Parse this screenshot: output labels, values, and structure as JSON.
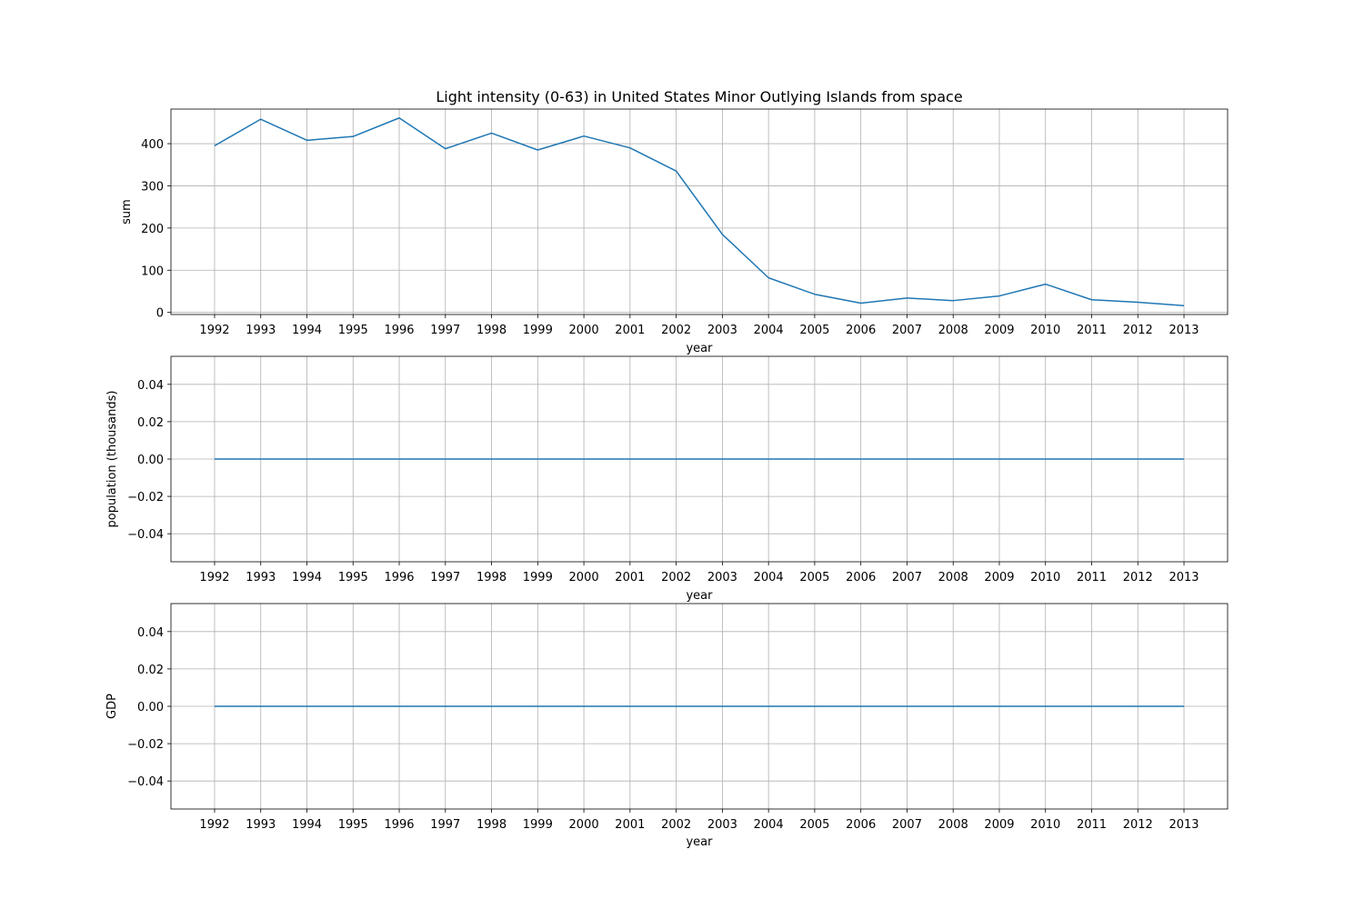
{
  "chart_data": [
    {
      "type": "line",
      "title": "Light intensity (0-63) in United States Minor Outlying Islands from space",
      "xlabel": "year",
      "ylabel": "sum",
      "grid": true,
      "line_color": "#1f77b4",
      "x": [
        1992,
        1993,
        1994,
        1995,
        1996,
        1997,
        1998,
        1999,
        2000,
        2001,
        2002,
        2003,
        2004,
        2005,
        2006,
        2007,
        2008,
        2009,
        2010,
        2011,
        2012,
        2013
      ],
      "values": [
        395,
        458,
        408,
        417,
        461,
        388,
        425,
        385,
        418,
        390,
        335,
        185,
        82,
        43,
        22,
        34,
        28,
        39,
        67,
        30,
        24,
        16
      ],
      "ylim": [
        -5,
        482
      ],
      "yticks": [
        0,
        100,
        200,
        300,
        400
      ],
      "ytick_labels": [
        "0",
        "100",
        "200",
        "300",
        "400"
      ]
    },
    {
      "type": "line",
      "title": "",
      "xlabel": "year",
      "ylabel": "population (thousands)",
      "grid": true,
      "line_color": "#1f77b4",
      "x": [
        1992,
        1993,
        1994,
        1995,
        1996,
        1997,
        1998,
        1999,
        2000,
        2001,
        2002,
        2003,
        2004,
        2005,
        2006,
        2007,
        2008,
        2009,
        2010,
        2011,
        2012,
        2013
      ],
      "values": [
        0,
        0,
        0,
        0,
        0,
        0,
        0,
        0,
        0,
        0,
        0,
        0,
        0,
        0,
        0,
        0,
        0,
        0,
        0,
        0,
        0,
        0
      ],
      "ylim": [
        -0.055,
        0.055
      ],
      "yticks": [
        -0.04,
        -0.02,
        0.0,
        0.02,
        0.04
      ],
      "ytick_labels": [
        "−0.04",
        "−0.02",
        "0.00",
        "0.02",
        "0.04"
      ]
    },
    {
      "type": "line",
      "title": "",
      "xlabel": "year",
      "ylabel": "GDP",
      "grid": true,
      "line_color": "#1f77b4",
      "x": [
        1992,
        1993,
        1994,
        1995,
        1996,
        1997,
        1998,
        1999,
        2000,
        2001,
        2002,
        2003,
        2004,
        2005,
        2006,
        2007,
        2008,
        2009,
        2010,
        2011,
        2012,
        2013
      ],
      "values": [
        0,
        0,
        0,
        0,
        0,
        0,
        0,
        0,
        0,
        0,
        0,
        0,
        0,
        0,
        0,
        0,
        0,
        0,
        0,
        0,
        0,
        0
      ],
      "ylim": [
        -0.055,
        0.055
      ],
      "yticks": [
        -0.04,
        -0.02,
        0.0,
        0.02,
        0.04
      ],
      "ytick_labels": [
        "−0.04",
        "−0.02",
        "0.00",
        "0.02",
        "0.04"
      ]
    }
  ]
}
